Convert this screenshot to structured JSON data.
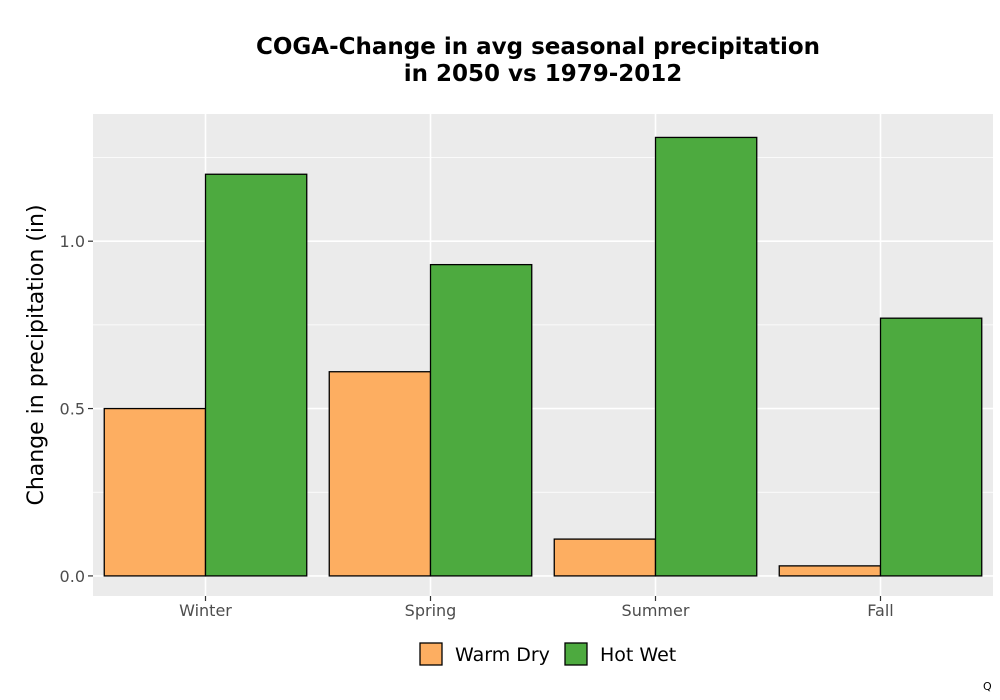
{
  "chart_data": {
    "type": "bar",
    "title_lines": [
      "COGA-Change in avg seasonal precipitation",
      "in 2050 vs 1979-2012"
    ],
    "xlabel": "",
    "ylabel": "Change in precipitation (in)",
    "categories": [
      "Winter",
      "Spring",
      "Summer",
      "Fall"
    ],
    "series": [
      {
        "name": "Warm Dry",
        "color": "#fdae61",
        "values": [
          0.5,
          0.61,
          0.11,
          0.03
        ]
      },
      {
        "name": "Hot Wet",
        "color": "#4daa3f",
        "values": [
          1.2,
          0.93,
          1.31,
          0.77
        ]
      }
    ],
    "ylim": [
      -0.06,
      1.38
    ],
    "yticks": [
      0.0,
      0.5,
      1.0
    ],
    "ytick_labels": [
      "0.0",
      "0.5",
      "1.0"
    ],
    "grid": true,
    "legend_position": "bottom",
    "panel_background": "#ebebeb",
    "grid_color": "#ffffff",
    "bar_outline": "#000000"
  },
  "corner_label": "Q"
}
